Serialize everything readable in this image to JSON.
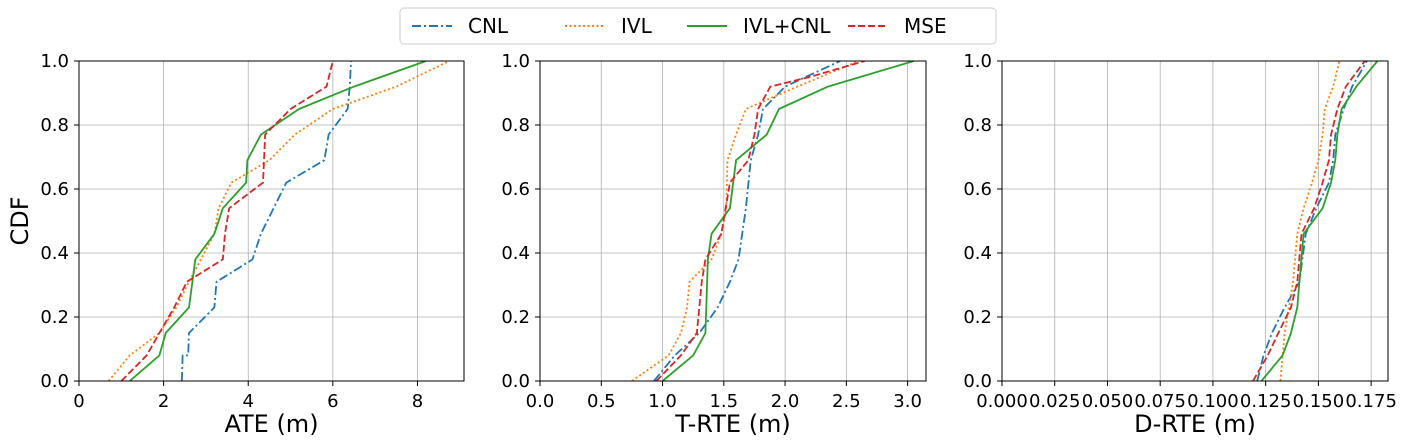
{
  "chart_data": {
    "type": "line",
    "legend": {
      "placement": "top-center",
      "entries": [
        {
          "name": "CNL",
          "color": "#1f77b4",
          "dash": "dashdot"
        },
        {
          "name": "IVL",
          "color": "#ff7f0e",
          "dash": "dotted"
        },
        {
          "name": "IVL+CNL",
          "color": "#2ca02c",
          "dash": "solid"
        },
        {
          "name": "MSE",
          "color": "#d62728",
          "dash": "dashed"
        }
      ]
    },
    "grid": true,
    "subplots": [
      {
        "id": "ate",
        "xlabel": "ATE (m)",
        "ylabel": "CDF",
        "xlim": [
          0,
          9.1
        ],
        "ylim": [
          0,
          1.0
        ],
        "xticks": [
          0,
          2,
          4,
          6,
          8
        ],
        "xtick_labels": [
          "0",
          "2",
          "4",
          "6",
          "8"
        ],
        "yticks": [
          0,
          0.2,
          0.4,
          0.6,
          0.8,
          1.0
        ],
        "ytick_labels": [
          "0.0",
          "0.2",
          "0.4",
          "0.6",
          "0.8",
          "1.0"
        ],
        "series": [
          {
            "name": "CNL",
            "points": [
              [
                2.43,
                0.0
              ],
              [
                2.45,
                0.08
              ],
              [
                2.58,
                0.08
              ],
              [
                2.6,
                0.15
              ],
              [
                3.2,
                0.23
              ],
              [
                3.25,
                0.31
              ],
              [
                4.1,
                0.38
              ],
              [
                4.3,
                0.46
              ],
              [
                4.9,
                0.62
              ],
              [
                5.8,
                0.69
              ],
              [
                5.9,
                0.77
              ],
              [
                6.35,
                0.85
              ],
              [
                6.4,
                0.92
              ],
              [
                6.43,
                1.0
              ]
            ]
          },
          {
            "name": "IVL",
            "points": [
              [
                0.7,
                0.0
              ],
              [
                1.2,
                0.08
              ],
              [
                1.9,
                0.15
              ],
              [
                2.3,
                0.23
              ],
              [
                2.6,
                0.31
              ],
              [
                3.2,
                0.46
              ],
              [
                3.3,
                0.54
              ],
              [
                3.6,
                0.62
              ],
              [
                4.5,
                0.69
              ],
              [
                5.1,
                0.77
              ],
              [
                6.0,
                0.85
              ],
              [
                7.5,
                0.92
              ],
              [
                8.75,
                1.0
              ]
            ]
          },
          {
            "name": "IVL+CNL",
            "points": [
              [
                1.2,
                0.0
              ],
              [
                1.9,
                0.08
              ],
              [
                2.05,
                0.15
              ],
              [
                2.6,
                0.23
              ],
              [
                2.75,
                0.38
              ],
              [
                3.2,
                0.46
              ],
              [
                3.4,
                0.54
              ],
              [
                3.95,
                0.62
              ],
              [
                3.98,
                0.69
              ],
              [
                4.3,
                0.77
              ],
              [
                5.2,
                0.85
              ],
              [
                6.5,
                0.92
              ],
              [
                8.2,
                1.0
              ]
            ]
          },
          {
            "name": "MSE",
            "points": [
              [
                1.0,
                0.0
              ],
              [
                1.6,
                0.08
              ],
              [
                1.9,
                0.15
              ],
              [
                2.25,
                0.23
              ],
              [
                2.55,
                0.31
              ],
              [
                3.4,
                0.38
              ],
              [
                3.45,
                0.46
              ],
              [
                3.55,
                0.54
              ],
              [
                4.35,
                0.62
              ],
              [
                4.4,
                0.77
              ],
              [
                5.0,
                0.85
              ],
              [
                5.85,
                0.92
              ],
              [
                6.0,
                1.0
              ]
            ]
          }
        ]
      },
      {
        "id": "trte",
        "xlabel": "T-RTE (m)",
        "ylabel": "",
        "xlim": [
          0,
          3.15
        ],
        "ylim": [
          0,
          1.0
        ],
        "xticks": [
          0,
          0.5,
          1.0,
          1.5,
          2.0,
          2.5,
          3.0
        ],
        "xtick_labels": [
          "0.0",
          "0.5",
          "1.0",
          "1.5",
          "2.0",
          "2.5",
          "3.0"
        ],
        "yticks": [
          0,
          0.2,
          0.4,
          0.6,
          0.8,
          1.0
        ],
        "ytick_labels": [
          "0.0",
          "0.2",
          "0.4",
          "0.6",
          "0.8",
          "1.0"
        ],
        "series": [
          {
            "name": "CNL",
            "points": [
              [
                0.93,
                0.0
              ],
              [
                1.1,
                0.08
              ],
              [
                1.3,
                0.15
              ],
              [
                1.45,
                0.23
              ],
              [
                1.55,
                0.31
              ],
              [
                1.62,
                0.38
              ],
              [
                1.65,
                0.46
              ],
              [
                1.68,
                0.54
              ],
              [
                1.72,
                0.69
              ],
              [
                1.78,
                0.77
              ],
              [
                1.82,
                0.85
              ],
              [
                2.0,
                0.92
              ],
              [
                2.45,
                1.0
              ]
            ]
          },
          {
            "name": "IVL",
            "points": [
              [
                0.75,
                0.0
              ],
              [
                1.05,
                0.08
              ],
              [
                1.15,
                0.15
              ],
              [
                1.2,
                0.23
              ],
              [
                1.22,
                0.31
              ],
              [
                1.4,
                0.38
              ],
              [
                1.48,
                0.46
              ],
              [
                1.52,
                0.54
              ],
              [
                1.53,
                0.69
              ],
              [
                1.6,
                0.77
              ],
              [
                1.68,
                0.85
              ],
              [
                2.1,
                0.92
              ],
              [
                2.6,
                1.0
              ]
            ]
          },
          {
            "name": "IVL+CNL",
            "points": [
              [
                1.0,
                0.0
              ],
              [
                1.25,
                0.08
              ],
              [
                1.35,
                0.15
              ],
              [
                1.37,
                0.38
              ],
              [
                1.4,
                0.46
              ],
              [
                1.55,
                0.54
              ],
              [
                1.6,
                0.69
              ],
              [
                1.85,
                0.77
              ],
              [
                1.95,
                0.85
              ],
              [
                2.35,
                0.92
              ],
              [
                3.05,
                1.0
              ]
            ]
          },
          {
            "name": "MSE",
            "points": [
              [
                0.95,
                0.0
              ],
              [
                1.15,
                0.08
              ],
              [
                1.28,
                0.15
              ],
              [
                1.32,
                0.31
              ],
              [
                1.35,
                0.38
              ],
              [
                1.48,
                0.46
              ],
              [
                1.55,
                0.62
              ],
              [
                1.7,
                0.69
              ],
              [
                1.75,
                0.77
              ],
              [
                1.78,
                0.85
              ],
              [
                1.88,
                0.92
              ],
              [
                2.2,
                0.95
              ],
              [
                2.65,
                1.0
              ]
            ]
          }
        ]
      },
      {
        "id": "drte",
        "xlabel": "D-RTE (m)",
        "ylabel": "",
        "xlim": [
          0,
          0.183
        ],
        "ylim": [
          0,
          1.0
        ],
        "xticks": [
          0,
          0.025,
          0.05,
          0.075,
          0.1,
          0.125,
          0.15,
          0.175
        ],
        "xtick_labels": [
          "0.000",
          "0.025",
          "0.050",
          "0.075",
          "0.100",
          "0.125",
          "0.150",
          "0.175"
        ],
        "yticks": [
          0,
          0.2,
          0.4,
          0.6,
          0.8,
          1.0
        ],
        "ytick_labels": [
          "0.0",
          "0.2",
          "0.4",
          "0.6",
          "0.8",
          "1.0"
        ],
        "series": [
          {
            "name": "CNL",
            "points": [
              [
                0.121,
                0.0
              ],
              [
                0.124,
                0.08
              ],
              [
                0.128,
                0.15
              ],
              [
                0.134,
                0.23
              ],
              [
                0.141,
                0.31
              ],
              [
                0.144,
                0.46
              ],
              [
                0.149,
                0.54
              ],
              [
                0.155,
                0.62
              ],
              [
                0.157,
                0.69
              ],
              [
                0.158,
                0.77
              ],
              [
                0.162,
                0.85
              ],
              [
                0.166,
                0.92
              ],
              [
                0.173,
                1.0
              ]
            ]
          },
          {
            "name": "IVL",
            "points": [
              [
                0.132,
                0.0
              ],
              [
                0.134,
                0.15
              ],
              [
                0.136,
                0.23
              ],
              [
                0.138,
                0.31
              ],
              [
                0.14,
                0.46
              ],
              [
                0.143,
                0.54
              ],
              [
                0.147,
                0.62
              ],
              [
                0.15,
                0.69
              ],
              [
                0.152,
                0.77
              ],
              [
                0.153,
                0.85
              ],
              [
                0.157,
                0.92
              ],
              [
                0.16,
                1.0
              ]
            ]
          },
          {
            "name": "IVL+CNL",
            "points": [
              [
                0.123,
                0.0
              ],
              [
                0.133,
                0.08
              ],
              [
                0.137,
                0.15
              ],
              [
                0.14,
                0.23
              ],
              [
                0.141,
                0.31
              ],
              [
                0.143,
                0.46
              ],
              [
                0.152,
                0.54
              ],
              [
                0.156,
                0.62
              ],
              [
                0.158,
                0.69
              ],
              [
                0.159,
                0.77
              ],
              [
                0.161,
                0.85
              ],
              [
                0.168,
                0.92
              ],
              [
                0.178,
                1.0
              ]
            ]
          },
          {
            "name": "MSE",
            "points": [
              [
                0.119,
                0.0
              ],
              [
                0.126,
                0.08
              ],
              [
                0.131,
                0.15
              ],
              [
                0.137,
                0.23
              ],
              [
                0.14,
                0.31
              ],
              [
                0.142,
                0.46
              ],
              [
                0.148,
                0.54
              ],
              [
                0.152,
                0.62
              ],
              [
                0.155,
                0.69
              ],
              [
                0.156,
                0.77
              ],
              [
                0.159,
                0.85
              ],
              [
                0.163,
                0.92
              ],
              [
                0.172,
                1.0
              ]
            ]
          }
        ]
      }
    ]
  }
}
